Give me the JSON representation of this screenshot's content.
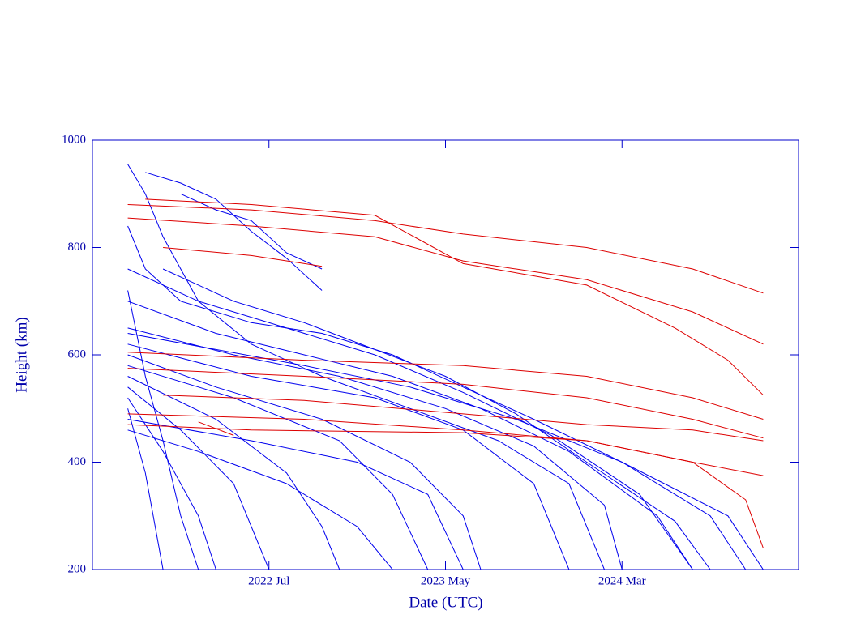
{
  "chart_data": {
    "type": "line",
    "x_label": "Date (UTC)",
    "y_label": "Height (km)",
    "xlim": [
      "2021-09",
      "2025-01"
    ],
    "xticks": [
      {
        "value": "2022-07",
        "label": "2022 Jul"
      },
      {
        "value": "2023-05",
        "label": "2023 May"
      },
      {
        "value": "2024-03",
        "label": "2024 Mar"
      }
    ],
    "ylim": [
      200,
      1000
    ],
    "yticks": [
      200,
      400,
      600,
      800,
      1000
    ],
    "series": [
      {
        "color": "#0000ee",
        "x": [
          "2021-11",
          "2021-12",
          "2022-01",
          "2022-03",
          "2022-06",
          "2022-10",
          "2023-03",
          "2023-08",
          "2023-12",
          "2024-02"
        ],
        "values": [
          955,
          900,
          820,
          700,
          620,
          560,
          500,
          440,
          360,
          200
        ]
      },
      {
        "color": "#0000ee",
        "x": [
          "2021-12",
          "2022-02",
          "2022-04",
          "2022-06",
          "2022-08",
          "2022-10"
        ],
        "values": [
          940,
          920,
          890,
          830,
          780,
          720
        ]
      },
      {
        "color": "#0000ee",
        "x": [
          "2022-02",
          "2022-04",
          "2022-06",
          "2022-08",
          "2022-10"
        ],
        "values": [
          900,
          870,
          850,
          790,
          760
        ]
      },
      {
        "color": "#0000ee",
        "x": [
          "2021-11",
          "2021-12",
          "2022-02",
          "2022-06",
          "2022-10",
          "2023-02",
          "2023-06",
          "2023-10",
          "2024-03",
          "2024-08",
          "2024-10"
        ],
        "values": [
          840,
          760,
          700,
          660,
          640,
          600,
          540,
          480,
          400,
          300,
          200
        ]
      },
      {
        "color": "#0000ee",
        "x": [
          "2021-11",
          "2022-03",
          "2022-08",
          "2023-01",
          "2023-06",
          "2023-11",
          "2024-04",
          "2024-07"
        ],
        "values": [
          760,
          700,
          650,
          600,
          530,
          450,
          340,
          200
        ]
      },
      {
        "color": "#0000ee",
        "x": [
          "2021-11",
          "2022-04",
          "2022-09",
          "2023-02",
          "2023-07",
          "2023-12",
          "2024-05",
          "2024-07"
        ],
        "values": [
          700,
          640,
          600,
          560,
          500,
          420,
          300,
          200
        ]
      },
      {
        "color": "#0000ee",
        "x": [
          "2021-11",
          "2022-05",
          "2022-11",
          "2023-05",
          "2023-10",
          "2024-02",
          "2024-03"
        ],
        "values": [
          650,
          600,
          560,
          500,
          430,
          320,
          200
        ]
      },
      {
        "color": "#0000ee",
        "x": [
          "2021-11",
          "2022-06",
          "2023-01",
          "2023-06",
          "2023-10",
          "2023-12"
        ],
        "values": [
          620,
          560,
          520,
          460,
          360,
          200
        ]
      },
      {
        "color": "#0000ee",
        "x": [
          "2021-11",
          "2022-04",
          "2022-10",
          "2023-03",
          "2023-06",
          "2023-07"
        ],
        "values": [
          600,
          540,
          480,
          400,
          300,
          200
        ]
      },
      {
        "color": "#0000ee",
        "x": [
          "2021-11",
          "2022-05",
          "2022-11",
          "2023-02",
          "2023-04"
        ],
        "values": [
          580,
          520,
          440,
          340,
          200
        ]
      },
      {
        "color": "#0000ee",
        "x": [
          "2021-11",
          "2022-04",
          "2022-08",
          "2022-10",
          "2022-11"
        ],
        "values": [
          560,
          480,
          380,
          280,
          200
        ]
      },
      {
        "color": "#0000ee",
        "x": [
          "2021-11",
          "2022-02",
          "2022-05",
          "2022-07"
        ],
        "values": [
          540,
          460,
          360,
          200
        ]
      },
      {
        "color": "#0000ee",
        "x": [
          "2021-11",
          "2022-01",
          "2022-03",
          "2022-04"
        ],
        "values": [
          520,
          420,
          300,
          200
        ]
      },
      {
        "color": "#0000ee",
        "x": [
          "2021-11",
          "2021-12",
          "2022-01"
        ],
        "values": [
          500,
          380,
          200
        ]
      },
      {
        "color": "#0000ee",
        "x": [
          "2021-11",
          "2022-06",
          "2022-12",
          "2023-04",
          "2023-06"
        ],
        "values": [
          480,
          440,
          400,
          340,
          200
        ]
      },
      {
        "color": "#0000ee",
        "x": [
          "2021-11",
          "2021-12",
          "2022-01",
          "2022-02",
          "2022-03"
        ],
        "values": [
          720,
          560,
          440,
          300,
          200
        ]
      },
      {
        "color": "#0000ee",
        "x": [
          "2021-11",
          "2022-09",
          "2023-03",
          "2023-09",
          "2024-03",
          "2024-09",
          "2024-11"
        ],
        "values": [
          640,
          580,
          540,
          480,
          400,
          300,
          200
        ]
      },
      {
        "color": "#0000ee",
        "x": [
          "2021-11",
          "2022-03",
          "2022-08",
          "2022-12",
          "2023-02"
        ],
        "values": [
          460,
          420,
          360,
          280,
          200
        ]
      },
      {
        "color": "#0000ee",
        "x": [
          "2022-01",
          "2022-05",
          "2022-09",
          "2023-01",
          "2023-05",
          "2023-09",
          "2024-01",
          "2024-06",
          "2024-08"
        ],
        "values": [
          760,
          700,
          660,
          610,
          560,
          490,
          400,
          290,
          200
        ]
      },
      {
        "color": "#dd0000",
        "x": [
          "2021-11",
          "2022-06",
          "2023-01",
          "2023-06",
          "2024-01",
          "2024-07",
          "2024-11"
        ],
        "values": [
          880,
          870,
          850,
          825,
          800,
          760,
          715
        ]
      },
      {
        "color": "#dd0000",
        "x": [
          "2021-11",
          "2022-06",
          "2023-01",
          "2023-06",
          "2024-01",
          "2024-07",
          "2024-11"
        ],
        "values": [
          855,
          840,
          820,
          775,
          740,
          680,
          620
        ]
      },
      {
        "color": "#dd0000",
        "x": [
          "2021-12",
          "2022-06",
          "2023-01",
          "2023-06",
          "2024-01",
          "2024-06",
          "2024-09",
          "2024-11"
        ],
        "values": [
          890,
          880,
          860,
          770,
          730,
          650,
          590,
          525
        ]
      },
      {
        "color": "#dd0000",
        "x": [
          "2022-01",
          "2022-06",
          "2022-10"
        ],
        "values": [
          800,
          785,
          765
        ]
      },
      {
        "color": "#dd0000",
        "x": [
          "2021-11",
          "2022-09",
          "2023-06",
          "2024-01",
          "2024-07",
          "2024-11"
        ],
        "values": [
          605,
          590,
          580,
          560,
          520,
          480
        ]
      },
      {
        "color": "#dd0000",
        "x": [
          "2021-11",
          "2022-09",
          "2023-06",
          "2024-01",
          "2024-07",
          "2024-11"
        ],
        "values": [
          575,
          560,
          545,
          520,
          480,
          445
        ]
      },
      {
        "color": "#dd0000",
        "x": [
          "2022-01",
          "2022-09",
          "2023-06",
          "2024-01",
          "2024-07",
          "2024-11"
        ],
        "values": [
          525,
          515,
          490,
          470,
          460,
          440
        ]
      },
      {
        "color": "#dd0000",
        "x": [
          "2021-11",
          "2022-09",
          "2023-06",
          "2024-01",
          "2024-07",
          "2024-11"
        ],
        "values": [
          490,
          480,
          460,
          440,
          400,
          375
        ]
      },
      {
        "color": "#dd0000",
        "x": [
          "2021-11",
          "2022-06",
          "2023-06",
          "2024-01",
          "2024-07",
          "2024-10",
          "2024-11"
        ],
        "values": [
          470,
          460,
          455,
          440,
          400,
          330,
          240
        ]
      },
      {
        "color": "#dd0000",
        "x": [
          "2022-03",
          "2022-05"
        ],
        "values": [
          475,
          450
        ]
      }
    ]
  }
}
